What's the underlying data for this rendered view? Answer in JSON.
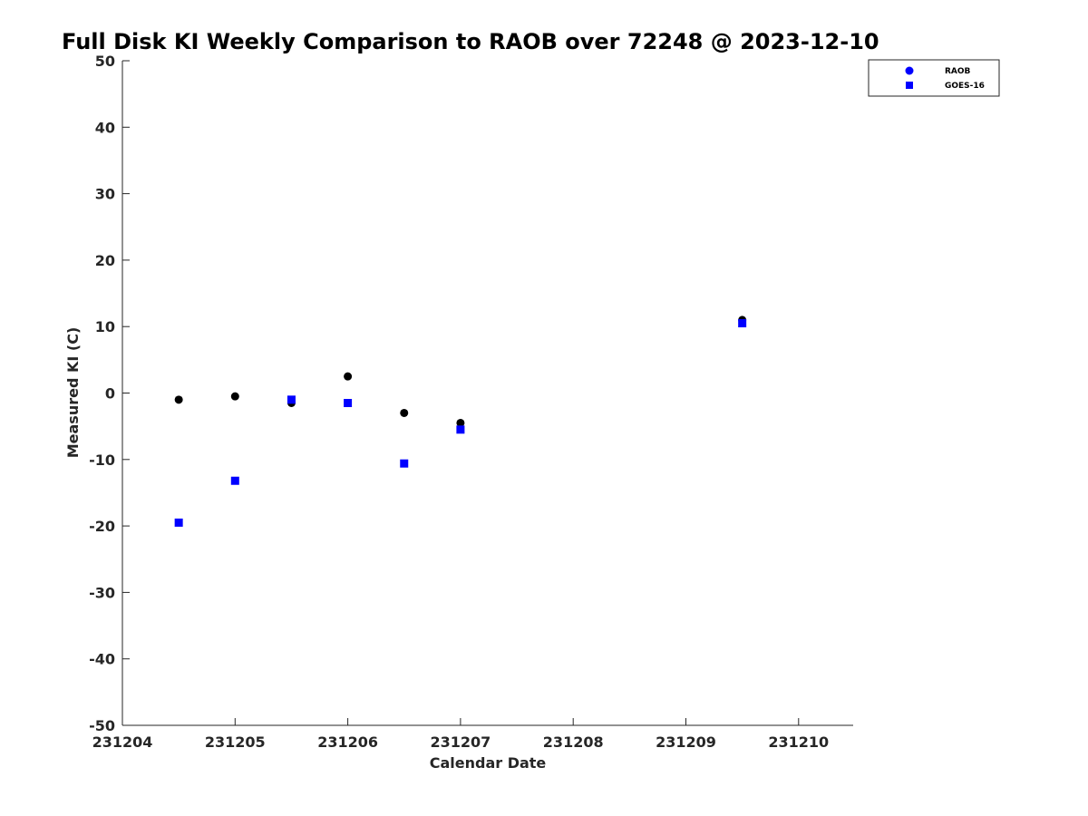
{
  "chart_data": {
    "type": "scatter",
    "title": "Full Disk KI Weekly Comparison to RAOB over 72248 @ 2023-12-10",
    "xlabel": "Calendar Date",
    "ylabel": "Measured KI (C)",
    "xlim": [
      0,
      6.5
    ],
    "ylim": [
      -50,
      50
    ],
    "x_ticks": [
      {
        "value": 0,
        "label": "231204"
      },
      {
        "value": 1,
        "label": "231205"
      },
      {
        "value": 2,
        "label": "231206"
      },
      {
        "value": 3,
        "label": "231207"
      },
      {
        "value": 4,
        "label": "231208"
      },
      {
        "value": 5,
        "label": "231209"
      },
      {
        "value": 6,
        "label": "231210"
      }
    ],
    "y_ticks": [
      50,
      40,
      30,
      20,
      10,
      0,
      -10,
      -20,
      -30,
      -40,
      -50
    ],
    "y_tick_labels": [
      "50",
      "40",
      "30",
      "20",
      "10",
      "0",
      "-10",
      "-20",
      "-30",
      "-40",
      "-50"
    ],
    "grid": false,
    "legend_position": "top-right",
    "series": [
      {
        "name": "RAOB",
        "legend_label": "RAOB",
        "legend_marker_color": "#0000ff",
        "plot_color": "#000000",
        "marker": "circle",
        "x": [
          0.5,
          1.0,
          1.5,
          2.0,
          2.5,
          3.0,
          5.5
        ],
        "values": [
          -1.0,
          -0.5,
          -1.5,
          2.5,
          -3.0,
          -4.5,
          11.0
        ]
      },
      {
        "name": "GOES-16",
        "legend_label": "GOES-16",
        "legend_marker_color": "#0000ff",
        "plot_color": "#0000ff",
        "marker": "square",
        "x": [
          0.5,
          1.0,
          1.5,
          2.0,
          2.5,
          3.0,
          5.5
        ],
        "values": [
          -19.5,
          -13.2,
          -1.0,
          -1.5,
          -10.6,
          -5.5,
          10.5
        ]
      }
    ]
  }
}
